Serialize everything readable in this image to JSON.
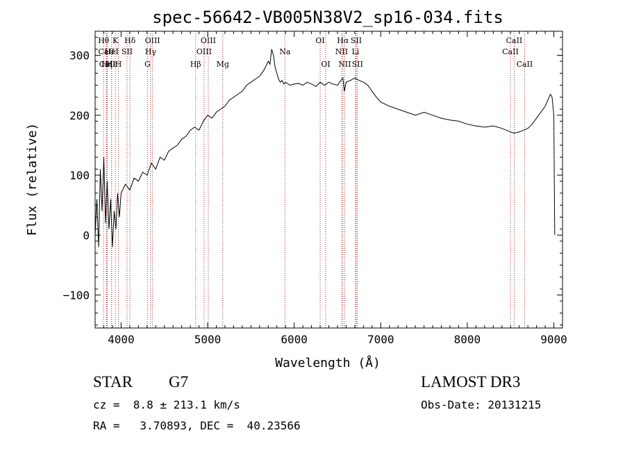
{
  "chart_data": {
    "type": "line",
    "title": "spec-56642-VB005N38V2_sp16-034.fits",
    "xlabel": "Wavelength (Å)",
    "ylabel": "Flux (relative)",
    "xlim": [
      3700,
      9100
    ],
    "ylim": [
      -155,
      340
    ],
    "x_ticks": [
      4000,
      5000,
      6000,
      7000,
      8000,
      9000
    ],
    "x_tick_labels": [
      "4000",
      "5000",
      "6000",
      "7000",
      "8000",
      "9000"
    ],
    "y_ticks": [
      -100,
      0,
      100,
      200,
      300
    ],
    "y_tick_labels": [
      "−100",
      "0",
      "100",
      "200",
      "300"
    ],
    "series": [
      {
        "name": "flux",
        "x": [
          3700,
          3720,
          3740,
          3760,
          3780,
          3800,
          3820,
          3840,
          3860,
          3880,
          3900,
          3920,
          3940,
          3960,
          3980,
          4000,
          4050,
          4100,
          4150,
          4200,
          4250,
          4300,
          4350,
          4400,
          4450,
          4500,
          4550,
          4600,
          4650,
          4700,
          4750,
          4800,
          4850,
          4900,
          4950,
          5000,
          5050,
          5100,
          5150,
          5200,
          5250,
          5300,
          5350,
          5400,
          5450,
          5500,
          5550,
          5600,
          5650,
          5700,
          5720,
          5740,
          5760,
          5780,
          5800,
          5820,
          5840,
          5860,
          5880,
          5900,
          5950,
          6000,
          6050,
          6100,
          6150,
          6200,
          6250,
          6300,
          6350,
          6400,
          6450,
          6500,
          6540,
          6563,
          6580,
          6600,
          6650,
          6700,
          6750,
          6800,
          6850,
          6900,
          6950,
          7000,
          7100,
          7200,
          7300,
          7400,
          7500,
          7600,
          7700,
          7800,
          7900,
          8000,
          8100,
          8200,
          8300,
          8400,
          8500,
          8540,
          8600,
          8650,
          8700,
          8750,
          8800,
          8850,
          8900,
          8930,
          8960,
          8980,
          9000,
          9010
        ],
        "values": [
          0,
          60,
          -20,
          110,
          40,
          130,
          20,
          90,
          10,
          60,
          -20,
          40,
          10,
          70,
          30,
          70,
          85,
          75,
          95,
          90,
          105,
          100,
          120,
          110,
          130,
          125,
          140,
          145,
          150,
          160,
          165,
          175,
          180,
          175,
          190,
          200,
          195,
          205,
          210,
          215,
          225,
          230,
          235,
          240,
          250,
          255,
          260,
          265,
          275,
          290,
          285,
          310,
          300,
          280,
          270,
          260,
          255,
          258,
          252,
          255,
          250,
          252,
          253,
          250,
          255,
          252,
          248,
          255,
          250,
          255,
          252,
          250,
          258,
          262,
          240,
          255,
          258,
          262,
          258,
          255,
          250,
          240,
          230,
          222,
          215,
          210,
          205,
          200,
          205,
          200,
          195,
          192,
          190,
          185,
          182,
          180,
          182,
          178,
          172,
          170,
          172,
          175,
          178,
          185,
          195,
          205,
          215,
          225,
          235,
          230,
          200,
          0
        ],
        "color": "#000000"
      }
    ],
    "spectral_lines": [
      {
        "label": "Hθ",
        "x": 3798,
        "row": 1
      },
      {
        "label": "CaII",
        "x": 3830,
        "row": 2
      },
      {
        "label": "CaII",
        "x": 3840,
        "row": 3
      },
      {
        "label": "K",
        "x": 3934,
        "row": 1
      },
      {
        "label": "Hε",
        "x": 3890,
        "row": 3
      },
      {
        "label": "HeI",
        "x": 3889,
        "row": 2
      },
      {
        "label": "Hη",
        "x": 3835,
        "row": 3
      },
      {
        "label": "SII",
        "x": 4069,
        "row": 2
      },
      {
        "label": "H",
        "x": 3969,
        "row": 3
      },
      {
        "label": "Hδ",
        "x": 4102,
        "row": 1
      },
      {
        "label": "OIII",
        "x": 4363,
        "row": 1
      },
      {
        "label": "Hγ",
        "x": 4341,
        "row": 2
      },
      {
        "label": "G",
        "x": 4305,
        "row": 3
      },
      {
        "label": "Hβ",
        "x": 4861,
        "row": 3
      },
      {
        "label": "OIII",
        "x": 5007,
        "row": 1
      },
      {
        "label": "OIII",
        "x": 4959,
        "row": 2
      },
      {
        "label": "Mg",
        "x": 5175,
        "row": 3
      },
      {
        "label": "Na",
        "x": 5893,
        "row": 2
      },
      {
        "label": "OI",
        "x": 6300,
        "row": 1
      },
      {
        "label": "OI",
        "x": 6364,
        "row": 3
      },
      {
        "label": "Hα",
        "x": 6563,
        "row": 1
      },
      {
        "label": "NII",
        "x": 6548,
        "row": 2
      },
      {
        "label": "NII",
        "x": 6584,
        "row": 3
      },
      {
        "label": "SII",
        "x": 6717,
        "row": 1
      },
      {
        "label": "Li",
        "x": 6708,
        "row": 2
      },
      {
        "label": "SII",
        "x": 6731,
        "row": 3
      },
      {
        "label": "CaII",
        "x": 8542,
        "row": 1
      },
      {
        "label": "CaII",
        "x": 8498,
        "row": 2
      },
      {
        "label": "CaII",
        "x": 8662,
        "row": 3
      }
    ],
    "line_color": "#b22222"
  },
  "info": {
    "object_class": "STAR",
    "subclass": "G7",
    "survey": "LAMOST DR3",
    "redshift": "cz =  8.8 ± 213.1 km/s",
    "obs_date": "Obs-Date: 20131215",
    "coords": "RA =   3.70893, DEC =  40.23566"
  }
}
